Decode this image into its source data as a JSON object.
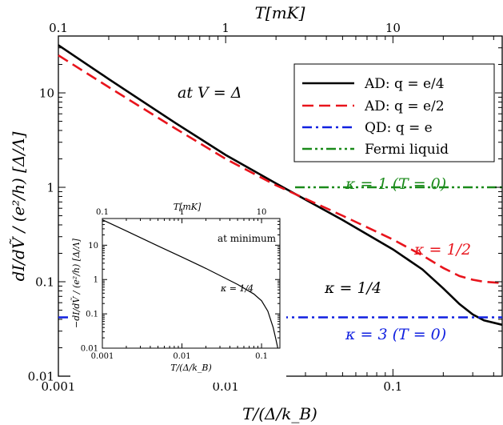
{
  "chart_data": [
    {
      "type": "line",
      "scale": "log-log",
      "xlabel": "T/(Δ/k_B)",
      "ylabel": "dI/dṼ / (e²/h) [Δ/Λ]",
      "top_axis_label": "T[mK]",
      "xlim": [
        0.001,
        0.45
      ],
      "ylim": [
        0.01,
        40
      ],
      "top_xlim": [
        0.1,
        45
      ],
      "x_ticks": [
        "0.001",
        "0.01",
        "0.1"
      ],
      "y_ticks": [
        "0.01",
        "0.1",
        "1",
        "10"
      ],
      "top_ticks": [
        "0.1",
        "1",
        "10"
      ],
      "annotation_title": "at V = Δ",
      "legend_position": "top-right",
      "series": [
        {
          "name": "AD: q = e/4",
          "color": "#000000",
          "dash": "solid",
          "x": [
            0.001,
            0.002,
            0.005,
            0.01,
            0.02,
            0.05,
            0.1,
            0.15,
            0.2,
            0.25,
            0.3,
            0.35,
            0.45
          ],
          "y": [
            32,
            14,
            4.8,
            2.2,
            1.1,
            0.45,
            0.22,
            0.135,
            0.085,
            0.058,
            0.045,
            0.039,
            0.035
          ]
        },
        {
          "name": "AD: q = e/2",
          "color": "#e8141c",
          "dash": "long-dash",
          "x": [
            0.001,
            0.002,
            0.005,
            0.01,
            0.02,
            0.05,
            0.1,
            0.15,
            0.2,
            0.25,
            0.3,
            0.35,
            0.45
          ],
          "y": [
            25,
            11.5,
            4.2,
            2.0,
            1.05,
            0.5,
            0.28,
            0.19,
            0.14,
            0.115,
            0.105,
            0.1,
            0.097
          ]
        },
        {
          "name": "QD: q = e",
          "color": "#1020e0",
          "dash": "dash-dot",
          "x": [
            0.001,
            0.45
          ],
          "y": [
            0.042,
            0.042
          ]
        },
        {
          "name": "Fermi liquid",
          "color": "#1a8a1a",
          "dash": "dash-dot-dot",
          "x": [
            0.026,
            0.45
          ],
          "y": [
            1.0,
            1.0
          ]
        }
      ],
      "annotations": [
        {
          "text": "κ = 1   (T = 0)",
          "color": "#1a8a1a"
        },
        {
          "text": "κ = 1/2",
          "color": "#e8141c"
        },
        {
          "text": "κ = 1/4",
          "color": "#000000"
        },
        {
          "text": "κ = 3   (T = 0)",
          "color": "#1020e0"
        }
      ]
    },
    {
      "type": "line",
      "scale": "log-log",
      "xlabel": "T/(Δ/k_B)",
      "ylabel": "−dI/dṼ / (e²/h) [Δ/Λ]",
      "top_axis_label": "T[mK]",
      "xlim": [
        0.001,
        0.17
      ],
      "ylim": [
        0.01,
        60
      ],
      "top_xlim": [
        0.1,
        17
      ],
      "x_ticks": [
        "0.001",
        "0.01",
        "0.1"
      ],
      "y_ticks": [
        "0.01",
        "0.1",
        "1",
        "10"
      ],
      "top_ticks": [
        "0.1",
        "1",
        "10"
      ],
      "annotation_title": "at minimum",
      "series": [
        {
          "name": "κ = 1/4",
          "color": "#000000",
          "x": [
            0.001,
            0.002,
            0.005,
            0.01,
            0.02,
            0.05,
            0.08,
            0.1,
            0.12,
            0.14,
            0.15,
            0.16
          ],
          "y": [
            55,
            26,
            9.5,
            4.5,
            2.1,
            0.72,
            0.38,
            0.24,
            0.12,
            0.04,
            0.02,
            0.01
          ]
        }
      ],
      "annotations": [
        {
          "text": "κ = 1/4",
          "color": "#000000"
        }
      ]
    }
  ]
}
